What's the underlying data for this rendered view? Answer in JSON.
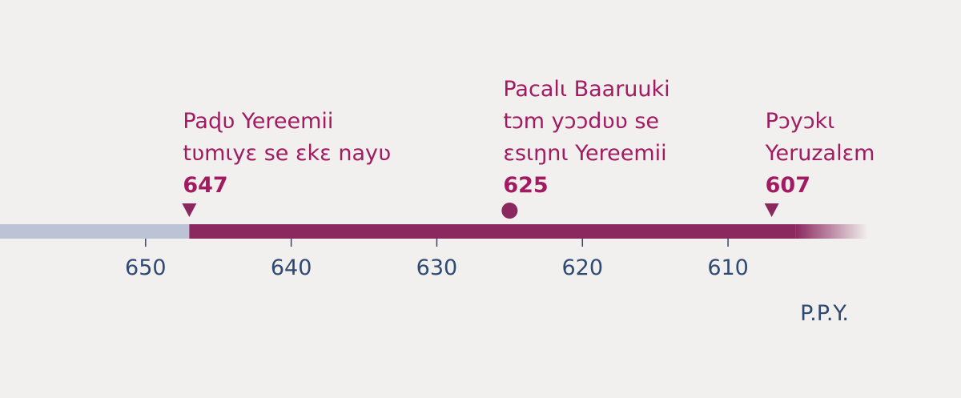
{
  "chart_data": {
    "type": "timeline",
    "xlim": [
      660,
      594
    ],
    "xticks": [
      650,
      640,
      630,
      620,
      610
    ],
    "x_label": "P.P.Y.",
    "events": [
      {
        "lines": [
          "Paɖʋ Yereemii",
          "tʋmɩyɛ se ɛkɛ nayʋ"
        ],
        "year": 647,
        "shape": "triangle"
      },
      {
        "lines": [
          "Pacalɩ Baaruuki",
          "tɔm yɔɔdʋʋ se",
          "ɛsɩŋnɩ Yereemii"
        ],
        "year": 625,
        "shape": "circle"
      },
      {
        "lines": [
          "Pɔyɔkɩ",
          "Yeruzalɛm"
        ],
        "year": 607,
        "shape": "triangle"
      }
    ],
    "colors": {
      "before": "#bcc3d6",
      "after": "#8b2860",
      "text": "#a21a60",
      "axis": "#2f4a72"
    }
  }
}
